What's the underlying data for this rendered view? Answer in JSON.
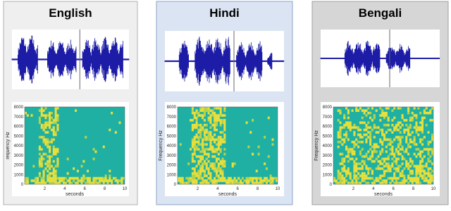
{
  "panels": [
    {
      "title": "English",
      "ylabel": "requency Hz",
      "xlabel": "seconds",
      "yticks": [
        "0",
        "1000",
        "2000",
        "3000",
        "4000",
        "5000",
        "6000",
        "7000",
        "8000"
      ],
      "xticks": [
        "2",
        "4",
        "6",
        "8",
        "10"
      ]
    },
    {
      "title": "Hindi",
      "ylabel": "Frequency Hz",
      "xlabel": "seconds",
      "yticks": [
        "0",
        "1000",
        "2000",
        "3000",
        "4000",
        "5000",
        "6000",
        "7000",
        "8000"
      ],
      "xticks": [
        "2",
        "4",
        "6",
        "8",
        "10"
      ]
    },
    {
      "title": "Bengali",
      "ylabel": "Frequency Hz",
      "xlabel": "seconds",
      "yticks": [
        "0",
        "1000",
        "2000",
        "3000",
        "4000",
        "5000",
        "6000",
        "7000",
        "8000"
      ],
      "xticks": [
        "2",
        "4",
        "6",
        "8",
        "10"
      ]
    }
  ]
}
